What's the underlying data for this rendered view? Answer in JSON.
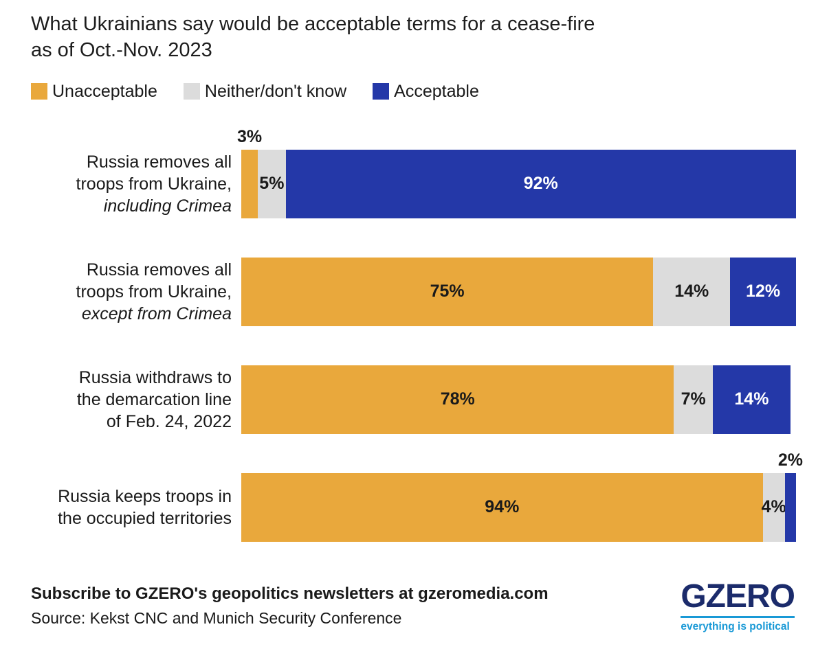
{
  "title": {
    "line1": "What Ukrainians say would be acceptable terms for a cease-fire",
    "line2": "as of Oct.-Nov. 2023"
  },
  "legend": [
    {
      "label": "Unacceptable",
      "color": "#E9A83C"
    },
    {
      "label": "Neither/don't know",
      "color": "#DCDCDC"
    },
    {
      "label": "Acceptable",
      "color": "#2438A8"
    }
  ],
  "chart_data": {
    "type": "bar",
    "orientation": "horizontal",
    "stacked": true,
    "title": "What Ukrainians say would be acceptable terms for a cease-fire as of Oct.-Nov. 2023",
    "xlim": [
      0,
      100
    ],
    "unit": "%",
    "categories": [
      "Russia removes all troops from Ukraine, including Crimea",
      "Russia removes all troops from Ukraine, except from Crimea",
      "Russia withdraws to the demarcation line of Feb. 24, 2022",
      "Russia keeps troops in the occupied territories"
    ],
    "series": [
      {
        "name": "Unacceptable",
        "color": "#E9A83C",
        "values": [
          3,
          75,
          78,
          94
        ]
      },
      {
        "name": "Neither/don't know",
        "color": "#DCDCDC",
        "values": [
          5,
          14,
          7,
          4
        ]
      },
      {
        "name": "Acceptable",
        "color": "#2438A8",
        "values": [
          92,
          12,
          14,
          2
        ]
      }
    ],
    "series_names": [
      "Unacceptable",
      "Neither/don't know",
      "Acceptable"
    ],
    "series_colors": [
      "#E9A83C",
      "#DCDCDC",
      "#2438A8"
    ],
    "value_label_colors": [
      "#1a1a1a",
      "#1a1a1a",
      "#ffffff"
    ],
    "rows": [
      {
        "label_lines": [
          {
            "text": "Russia removes all",
            "italic": false
          },
          {
            "text": "troops from Ukraine,",
            "italic": false
          },
          {
            "text": "including Crimea",
            "italic": true
          }
        ],
        "values": [
          3,
          5,
          92
        ]
      },
      {
        "label_lines": [
          {
            "text": "Russia removes all",
            "italic": false
          },
          {
            "text": "troops from Ukraine,",
            "italic": false
          },
          {
            "text": "except from Crimea",
            "italic": true
          }
        ],
        "values": [
          75,
          14,
          12
        ]
      },
      {
        "label_lines": [
          {
            "text": "Russia withdraws to",
            "italic": false
          },
          {
            "text": "the demarcation line",
            "italic": false
          },
          {
            "text": "of Feb. 24, 2022",
            "italic": false
          }
        ],
        "values": [
          78,
          7,
          14
        ]
      },
      {
        "label_lines": [
          {
            "text": "Russia keeps troops in",
            "italic": false
          },
          {
            "text": "the occupied territories",
            "italic": false
          }
        ],
        "values": [
          94,
          4,
          2
        ]
      }
    ]
  },
  "footer": {
    "subscribe": "Subscribe to GZERO's geopolitics newsletters at gzeromedia.com",
    "source": "Source: Kekst CNC and Munich Security Conference",
    "logo_text": "GZERO",
    "logo_tagline": "everything is political",
    "logo_color": "#1B2B6B",
    "tagline_color": "#1999D6"
  }
}
